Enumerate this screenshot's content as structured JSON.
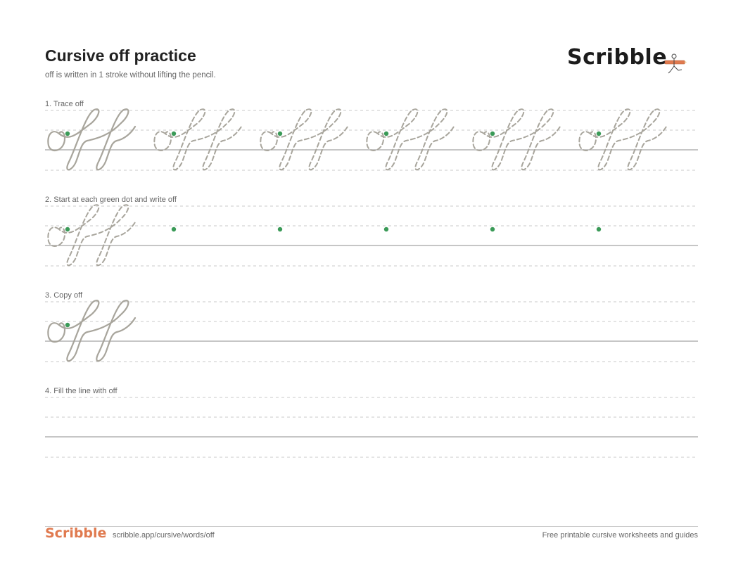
{
  "header": {
    "title": "Cursive off practice",
    "subtitle": "off is written in 1 stroke without lifting the pencil.",
    "brand": "Scribble",
    "mascot_icon": "pencil-runner-icon"
  },
  "sections": [
    {
      "label": "1. Trace off"
    },
    {
      "label": "2. Start at each green dot and write off"
    },
    {
      "label": "3. Copy off"
    },
    {
      "label": "4. Fill the line with off"
    }
  ],
  "colors": {
    "guide_line": "#c8c8c8",
    "baseline": "#b3b3b3",
    "letter_stroke": "#a8a59c",
    "start_dot": "#3a9a57",
    "brand_accent": "#e07a4f"
  },
  "footer": {
    "brand": "Scribble",
    "url": "scribble.app/cursive/words/off",
    "tagline": "Free printable cursive worksheets and guides"
  }
}
